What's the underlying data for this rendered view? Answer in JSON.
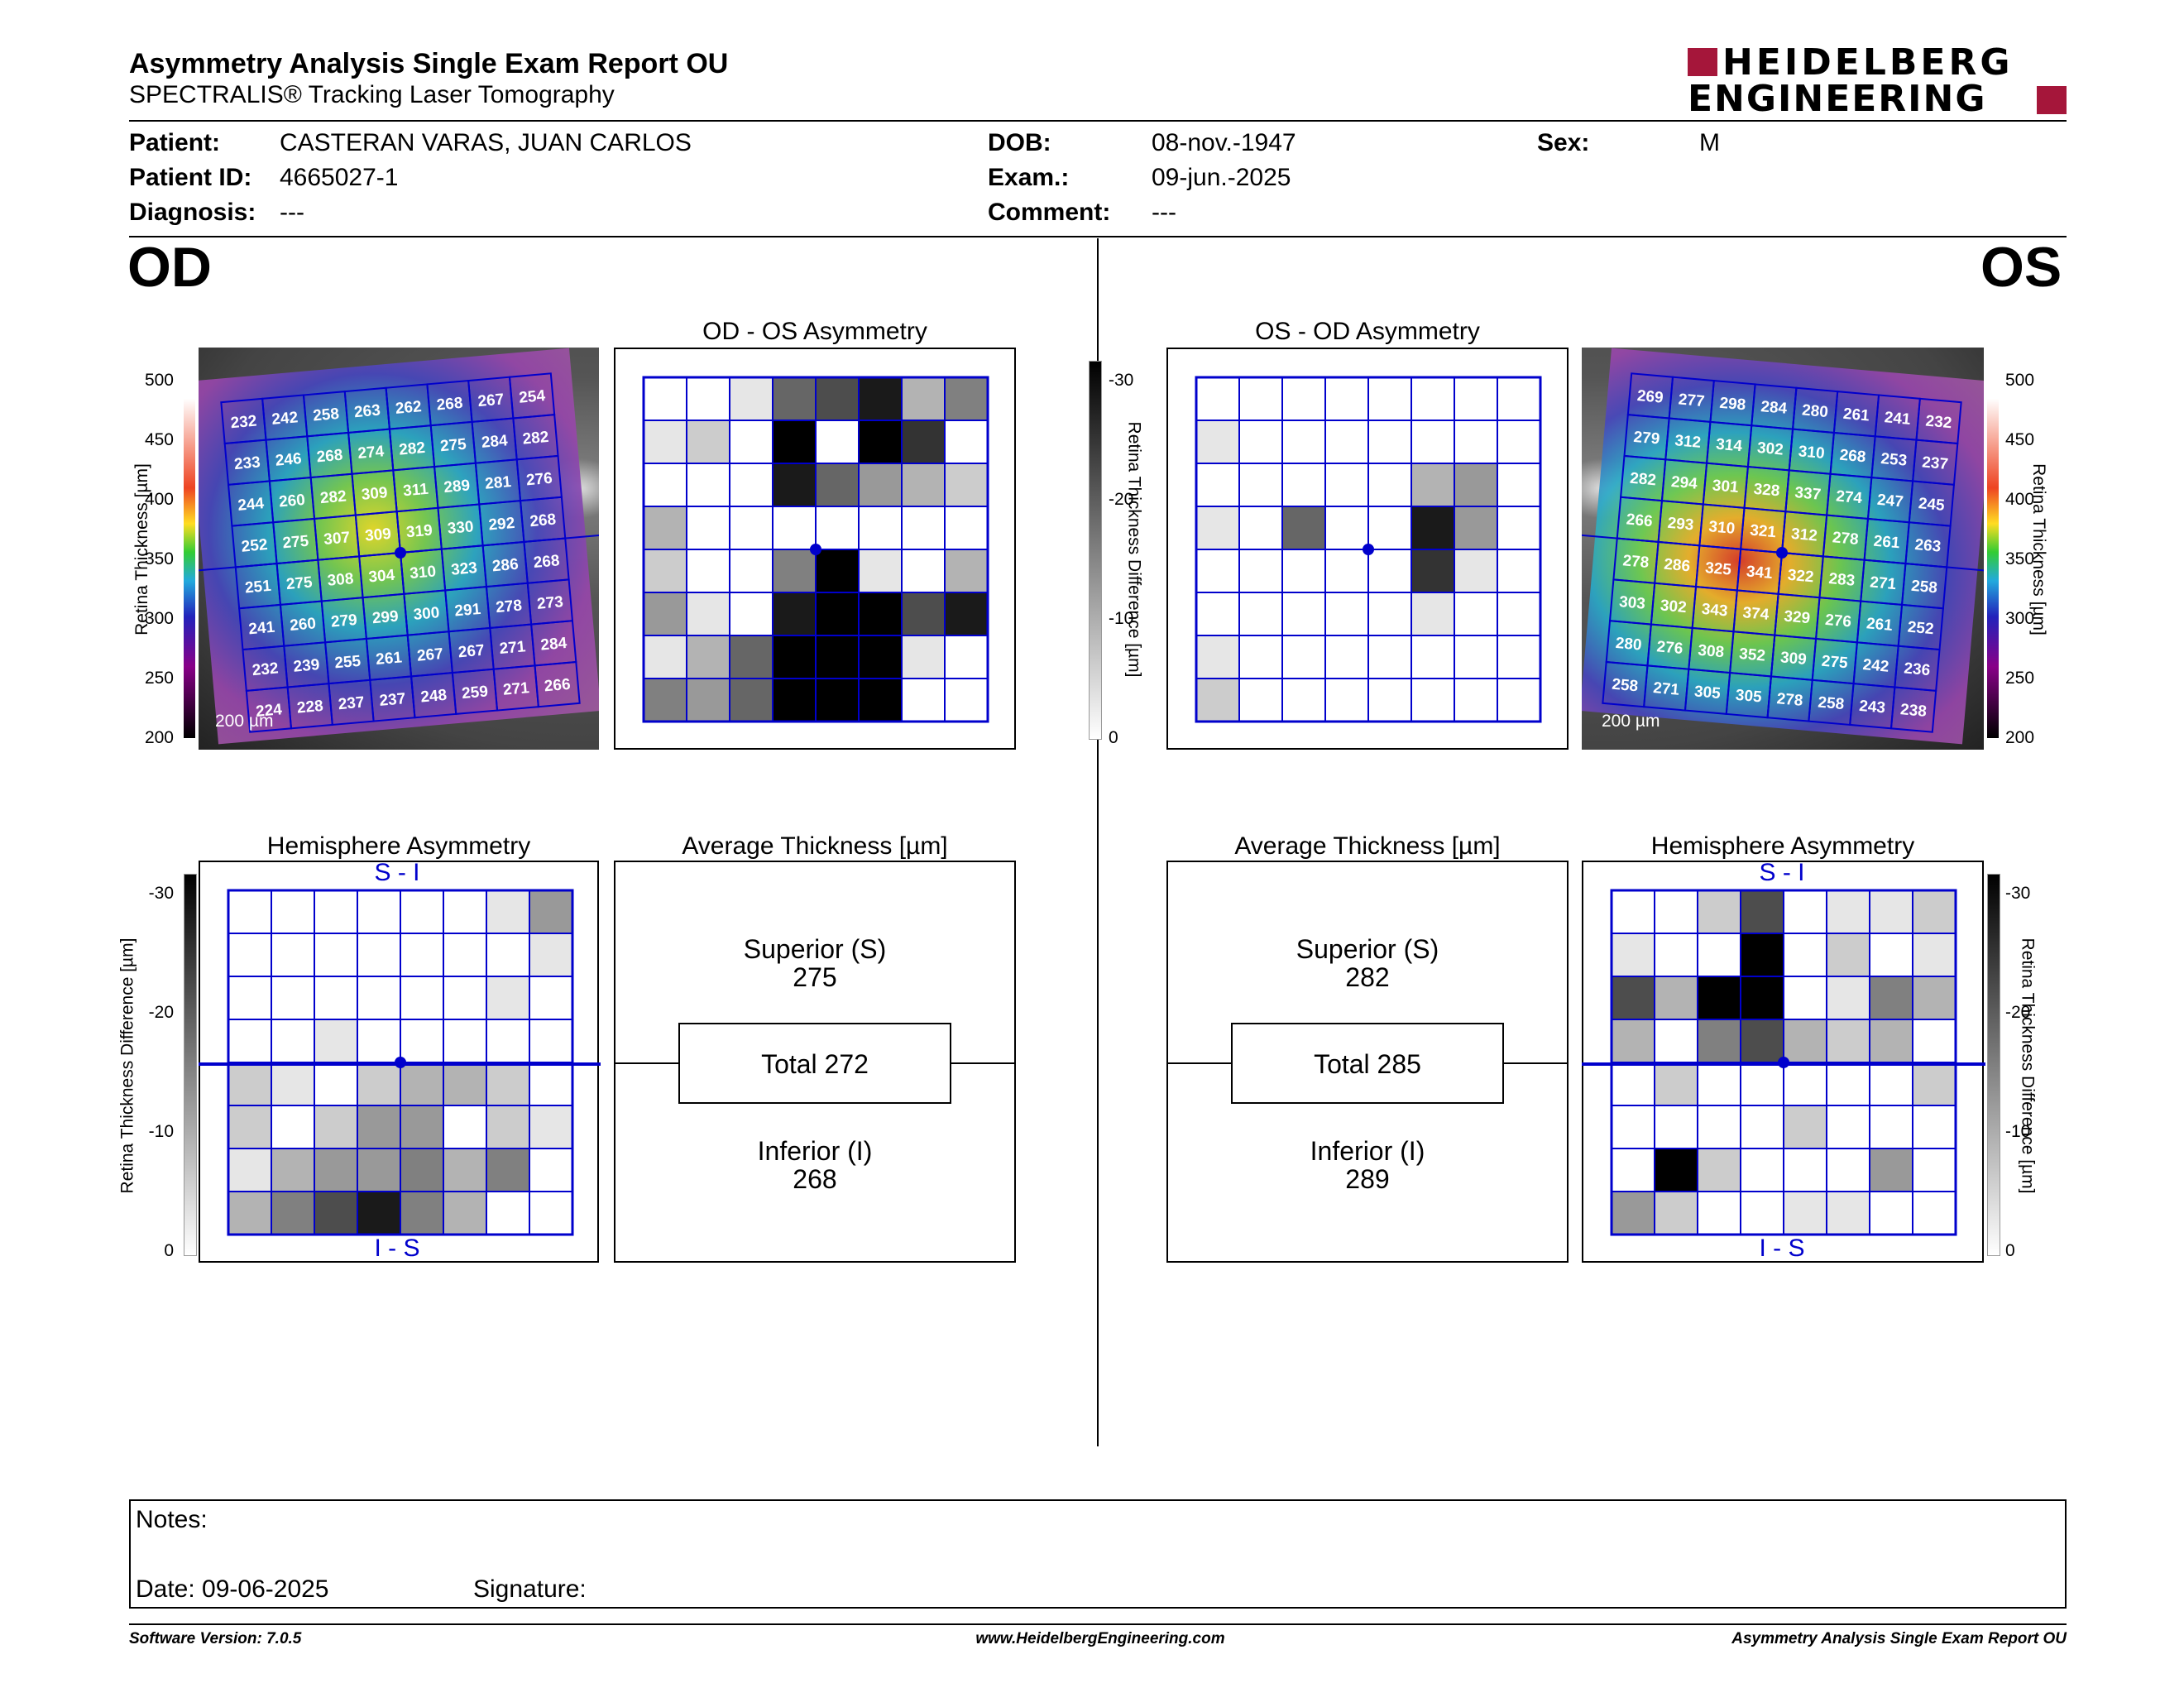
{
  "report": {
    "title": "Asymmetry Analysis Single Exam Report OU",
    "subtitle": "SPECTRALIS® Tracking Laser Tomography",
    "brand_line1": "HEIDELBERG",
    "brand_line2": "ENGINEERING"
  },
  "patient": {
    "patient_label": "Patient:",
    "patient_value": "CASTERAN VARAS, JUAN CARLOS",
    "id_label": "Patient ID:",
    "id_value": "4665027-1",
    "diag_label": "Diagnosis:",
    "diag_value": "---",
    "dob_label": "DOB:",
    "dob_value": "08-nov.-1947",
    "exam_label": "Exam.:",
    "exam_value": "09-jun.-2025",
    "comment_label": "Comment:",
    "comment_value": "---",
    "sex_label": "Sex:",
    "sex_value": "M"
  },
  "od": {
    "eye": "OD",
    "asym_title": "OD - OS Asymmetry",
    "hemi_title": "Hemisphere Asymmetry",
    "avg_title": "Average Thickness [µm]",
    "superior_label": "Superior (S)",
    "superior_value": "275",
    "total_label": "Total 272",
    "inferior_label": "Inferior (I)",
    "inferior_value": "268",
    "scale_label": "200 µm",
    "hemi_top": "S - I",
    "hemi_bottom": "I - S",
    "thickness_grid": [
      [
        232,
        242,
        258,
        263,
        262,
        268,
        267,
        254
      ],
      [
        233,
        246,
        268,
        274,
        282,
        275,
        284,
        282
      ],
      [
        244,
        260,
        282,
        309,
        311,
        289,
        281,
        276
      ],
      [
        252,
        275,
        307,
        309,
        319,
        330,
        292,
        268
      ],
      [
        251,
        275,
        308,
        304,
        310,
        323,
        286,
        268
      ],
      [
        241,
        260,
        279,
        299,
        300,
        291,
        278,
        273
      ],
      [
        232,
        239,
        255,
        261,
        267,
        267,
        271,
        284
      ],
      [
        224,
        228,
        237,
        237,
        248,
        259,
        271,
        266
      ]
    ],
    "asym_grid": [
      [
        0,
        0,
        1,
        6,
        7,
        9,
        3,
        5
      ],
      [
        1,
        2,
        0,
        10,
        0,
        10,
        8,
        0
      ],
      [
        0,
        0,
        0,
        9,
        6,
        4,
        3,
        2
      ],
      [
        3,
        0,
        0,
        0,
        0,
        0,
        0,
        0
      ],
      [
        2,
        0,
        0,
        5,
        10,
        1,
        0,
        3
      ],
      [
        4,
        1,
        0,
        9,
        10,
        10,
        7,
        9
      ],
      [
        1,
        3,
        6,
        10,
        10,
        10,
        1,
        0
      ],
      [
        5,
        4,
        6,
        10,
        10,
        10,
        0,
        0
      ]
    ],
    "hemi_grid": [
      [
        0,
        0,
        0,
        0,
        0,
        0,
        1,
        4
      ],
      [
        0,
        0,
        0,
        0,
        0,
        0,
        0,
        1
      ],
      [
        0,
        0,
        0,
        0,
        0,
        0,
        1,
        0
      ],
      [
        0,
        0,
        1,
        0,
        0,
        0,
        0,
        0
      ],
      [
        2,
        1,
        0,
        2,
        3,
        3,
        2,
        0
      ],
      [
        2,
        0,
        2,
        4,
        4,
        0,
        2,
        1
      ],
      [
        1,
        3,
        4,
        4,
        5,
        3,
        5,
        0
      ],
      [
        3,
        5,
        7,
        9,
        5,
        3,
        0,
        0
      ]
    ]
  },
  "os": {
    "eye": "OS",
    "asym_title": "OS - OD Asymmetry",
    "hemi_title": "Hemisphere Asymmetry",
    "avg_title": "Average Thickness [µm]",
    "superior_label": "Superior (S)",
    "superior_value": "282",
    "total_label": "Total 285",
    "inferior_label": "Inferior (I)",
    "inferior_value": "289",
    "scale_label": "200 µm",
    "hemi_top": "S - I",
    "hemi_bottom": "I - S",
    "thickness_grid": [
      [
        269,
        277,
        298,
        284,
        280,
        261,
        241,
        232
      ],
      [
        279,
        312,
        314,
        302,
        310,
        268,
        253,
        237
      ],
      [
        282,
        294,
        301,
        328,
        337,
        274,
        247,
        245
      ],
      [
        266,
        293,
        310,
        321,
        312,
        278,
        261,
        263
      ],
      [
        278,
        286,
        325,
        341,
        322,
        283,
        271,
        258
      ],
      [
        303,
        302,
        343,
        374,
        329,
        276,
        261,
        252
      ],
      [
        280,
        276,
        308,
        352,
        309,
        275,
        242,
        236
      ],
      [
        258,
        271,
        305,
        305,
        278,
        258,
        243,
        238
      ]
    ],
    "asym_grid": [
      [
        0,
        0,
        0,
        0,
        0,
        0,
        0,
        0
      ],
      [
        1,
        0,
        0,
        0,
        0,
        0,
        0,
        0
      ],
      [
        0,
        0,
        0,
        0,
        0,
        3,
        4,
        0
      ],
      [
        1,
        0,
        6,
        0,
        0,
        9,
        4,
        0
      ],
      [
        0,
        0,
        0,
        0,
        0,
        8,
        1,
        0
      ],
      [
        0,
        0,
        0,
        0,
        0,
        1,
        0,
        0
      ],
      [
        1,
        0,
        0,
        0,
        0,
        0,
        0,
        0
      ],
      [
        2,
        0,
        0,
        0,
        0,
        0,
        0,
        0
      ]
    ],
    "hemi_grid": [
      [
        0,
        0,
        2,
        7,
        0,
        1,
        1,
        2
      ],
      [
        1,
        0,
        0,
        10,
        0,
        2,
        0,
        1
      ],
      [
        7,
        3,
        10,
        10,
        0,
        1,
        5,
        3
      ],
      [
        3,
        0,
        5,
        7,
        3,
        2,
        3,
        0
      ],
      [
        0,
        2,
        0,
        0,
        0,
        0,
        0,
        2
      ],
      [
        0,
        0,
        0,
        0,
        2,
        0,
        0,
        0
      ],
      [
        0,
        10,
        2,
        0,
        0,
        0,
        4,
        0
      ],
      [
        4,
        2,
        0,
        0,
        1,
        1,
        0,
        0
      ]
    ]
  },
  "scales": {
    "thickness_ticks": [
      "500",
      "450",
      "400",
      "350",
      "300",
      "250",
      "200"
    ],
    "thickness_label": "Retina Thickness [µm]",
    "diff_ticks": [
      "-30",
      "-20",
      "-10",
      "0"
    ],
    "diff_label": "Retina Thickness Difference [µm]"
  },
  "notes": {
    "notes_label": "Notes:",
    "date_label": "Date: 09-06-2025",
    "signature_label": "Signature:"
  },
  "footer": {
    "left": "Software Version: 7.0.5",
    "center": "www.HeidelbergEngineering.com",
    "right": "Asymmetry Analysis Single Exam Report OU"
  },
  "colors": {
    "grid_blue": "#0000cc",
    "brand_red": "#a5163a"
  }
}
